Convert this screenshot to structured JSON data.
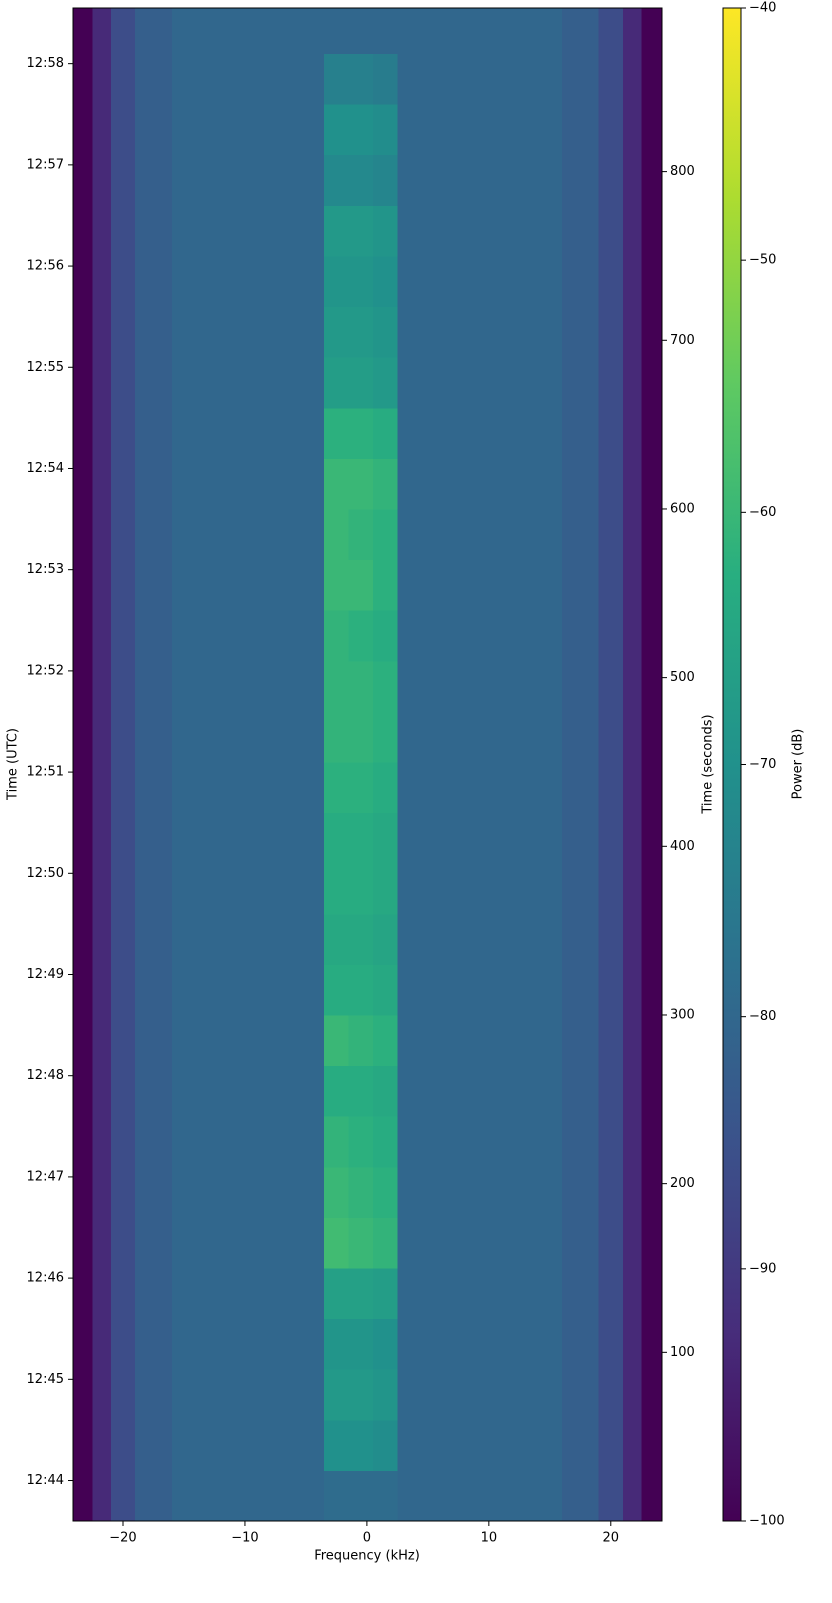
{
  "chart_data": {
    "type": "heatmap",
    "xlabel": "Frequency (kHz)",
    "ylabel": "Time (UTC)",
    "y2label": "Time (seconds)",
    "colorbar_label": "Power (dB)",
    "colormap": "viridis",
    "xlim": [
      -24.1,
      24.2
    ],
    "xticks": [
      {
        "value": -20,
        "label": "−20"
      },
      {
        "value": -10,
        "label": "−10"
      },
      0,
      10,
      20
    ],
    "ylim": [
      0,
      897
    ],
    "yticks": [
      {
        "value": 24,
        "label": "12:44"
      },
      {
        "value": 84,
        "label": "12:45"
      },
      {
        "value": 144,
        "label": "12:46"
      },
      {
        "value": 204,
        "label": "12:47"
      },
      {
        "value": 264,
        "label": "12:48"
      },
      {
        "value": 324,
        "label": "12:49"
      },
      {
        "value": 384,
        "label": "12:50"
      },
      {
        "value": 444,
        "label": "12:51"
      },
      {
        "value": 504,
        "label": "12:52"
      },
      {
        "value": 564,
        "label": "12:53"
      },
      {
        "value": 624,
        "label": "12:54"
      },
      {
        "value": 684,
        "label": "12:55"
      },
      {
        "value": 744,
        "label": "12:56"
      },
      {
        "value": 804,
        "label": "12:57"
      },
      {
        "value": 864,
        "label": "12:58"
      }
    ],
    "y2lim": [
      0,
      897
    ],
    "y2ticks": [
      100,
      200,
      300,
      400,
      500,
      600,
      700,
      800
    ],
    "clim": [
      -100,
      -40
    ],
    "cticks": [
      {
        "value": -40,
        "label": "−40"
      },
      {
        "value": -50,
        "label": "−50"
      },
      {
        "value": -60,
        "label": "−60"
      },
      {
        "value": -70,
        "label": "−70"
      },
      {
        "value": -80,
        "label": "−80"
      },
      {
        "value": -90,
        "label": "−90"
      },
      {
        "value": -100,
        "label": "−100"
      }
    ],
    "x_edges": [
      -24.1,
      -22.5,
      -21,
      -19,
      -16,
      -3.5,
      -1.5,
      0.5,
      2.5,
      16,
      19,
      21,
      22.5,
      24.2
    ],
    "y_edges": [
      0,
      30,
      60,
      90,
      120,
      150,
      180,
      210,
      240,
      270,
      300,
      330,
      360,
      390,
      420,
      450,
      480,
      510,
      540,
      570,
      600,
      630,
      660,
      690,
      720,
      750,
      780,
      810,
      840,
      870,
      897
    ],
    "z": [
      [
        -100,
        -93,
        -86,
        -82,
        -80,
        -79,
        -79,
        -79,
        -80,
        -82,
        -86,
        -93,
        -100
      ],
      [
        -100,
        -93,
        -86,
        -82,
        -80,
        -70,
        -70,
        -71,
        -80,
        -82,
        -86,
        -93,
        -100
      ],
      [
        -100,
        -93,
        -86,
        -82,
        -80,
        -68,
        -68,
        -69,
        -80,
        -82,
        -86,
        -93,
        -100
      ],
      [
        -100,
        -93,
        -86,
        -82,
        -80,
        -69,
        -69,
        -70,
        -80,
        -82,
        -86,
        -93,
        -100
      ],
      [
        -100,
        -93,
        -86,
        -82,
        -80,
        -66,
        -66,
        -67,
        -80,
        -82,
        -86,
        -93,
        -100
      ],
      [
        -100,
        -93,
        -86,
        -82,
        -80,
        -59,
        -60,
        -61,
        -80,
        -82,
        -86,
        -93,
        -100
      ],
      [
        -100,
        -93,
        -86,
        -82,
        -80,
        -60,
        -61,
        -62,
        -80,
        -82,
        -86,
        -93,
        -100
      ],
      [
        -100,
        -93,
        -86,
        -82,
        -80,
        -61,
        -62,
        -63,
        -80,
        -82,
        -86,
        -93,
        -100
      ],
      [
        -100,
        -93,
        -86,
        -82,
        -80,
        -63,
        -63,
        -64,
        -80,
        -82,
        -86,
        -93,
        -100
      ],
      [
        -100,
        -93,
        -86,
        -82,
        -80,
        -60,
        -61,
        -62,
        -80,
        -82,
        -86,
        -93,
        -100
      ],
      [
        -100,
        -93,
        -86,
        -82,
        -80,
        -63,
        -63,
        -64,
        -80,
        -82,
        -86,
        -93,
        -100
      ],
      [
        -100,
        -93,
        -86,
        -82,
        -80,
        -64,
        -64,
        -65,
        -80,
        -82,
        -86,
        -93,
        -100
      ],
      [
        -100,
        -93,
        -86,
        -82,
        -80,
        -63,
        -63,
        -64,
        -80,
        -82,
        -86,
        -93,
        -100
      ],
      [
        -100,
        -93,
        -86,
        -82,
        -80,
        -63,
        -63,
        -64,
        -80,
        -82,
        -86,
        -93,
        -100
      ],
      [
        -100,
        -93,
        -86,
        -82,
        -80,
        -62,
        -62,
        -63,
        -80,
        -82,
        -86,
        -93,
        -100
      ],
      [
        -100,
        -93,
        -86,
        -82,
        -80,
        -61,
        -61,
        -62,
        -80,
        -82,
        -86,
        -93,
        -100
      ],
      [
        -100,
        -93,
        -86,
        -82,
        -80,
        -61,
        -61,
        -62,
        -80,
        -82,
        -86,
        -93,
        -100
      ],
      [
        -100,
        -93,
        -86,
        -82,
        -80,
        -61,
        -62,
        -63,
        -80,
        -82,
        -86,
        -93,
        -100
      ],
      [
        -100,
        -93,
        -86,
        -82,
        -80,
        -60,
        -60,
        -62,
        -80,
        -82,
        -86,
        -93,
        -100
      ],
      [
        -100,
        -93,
        -86,
        -82,
        -80,
        -60,
        -61,
        -62,
        -80,
        -82,
        -86,
        -93,
        -100
      ],
      [
        -100,
        -93,
        -86,
        -82,
        -80,
        -60,
        -60,
        -61,
        -80,
        -82,
        -86,
        -93,
        -100
      ],
      [
        -100,
        -93,
        -86,
        -82,
        -80,
        -62,
        -62,
        -63,
        -80,
        -82,
        -86,
        -93,
        -100
      ],
      [
        -100,
        -93,
        -86,
        -82,
        -80,
        -67,
        -67,
        -68,
        -80,
        -82,
        -86,
        -93,
        -100
      ],
      [
        -100,
        -93,
        -86,
        -82,
        -80,
        -68,
        -68,
        -69,
        -80,
        -82,
        -86,
        -93,
        -100
      ],
      [
        -100,
        -93,
        -86,
        -82,
        -80,
        -69,
        -69,
        -70,
        -80,
        -82,
        -86,
        -93,
        -100
      ],
      [
        -100,
        -93,
        -86,
        -82,
        -80,
        -68,
        -68,
        -69,
        -80,
        -82,
        -86,
        -93,
        -100
      ],
      [
        -100,
        -93,
        -86,
        -82,
        -80,
        -72,
        -72,
        -73,
        -80,
        -82,
        -86,
        -93,
        -100
      ],
      [
        -100,
        -93,
        -86,
        -82,
        -80,
        -70,
        -70,
        -71,
        -80,
        -82,
        -86,
        -93,
        -100
      ],
      [
        -100,
        -93,
        -86,
        -82,
        -80,
        -74,
        -74,
        -75,
        -80,
        -82,
        -86,
        -93,
        -100
      ],
      [
        -100,
        -93,
        -86,
        -82,
        -80,
        -80,
        -80,
        -80,
        -80,
        -82,
        -86,
        -93,
        -100
      ]
    ]
  }
}
